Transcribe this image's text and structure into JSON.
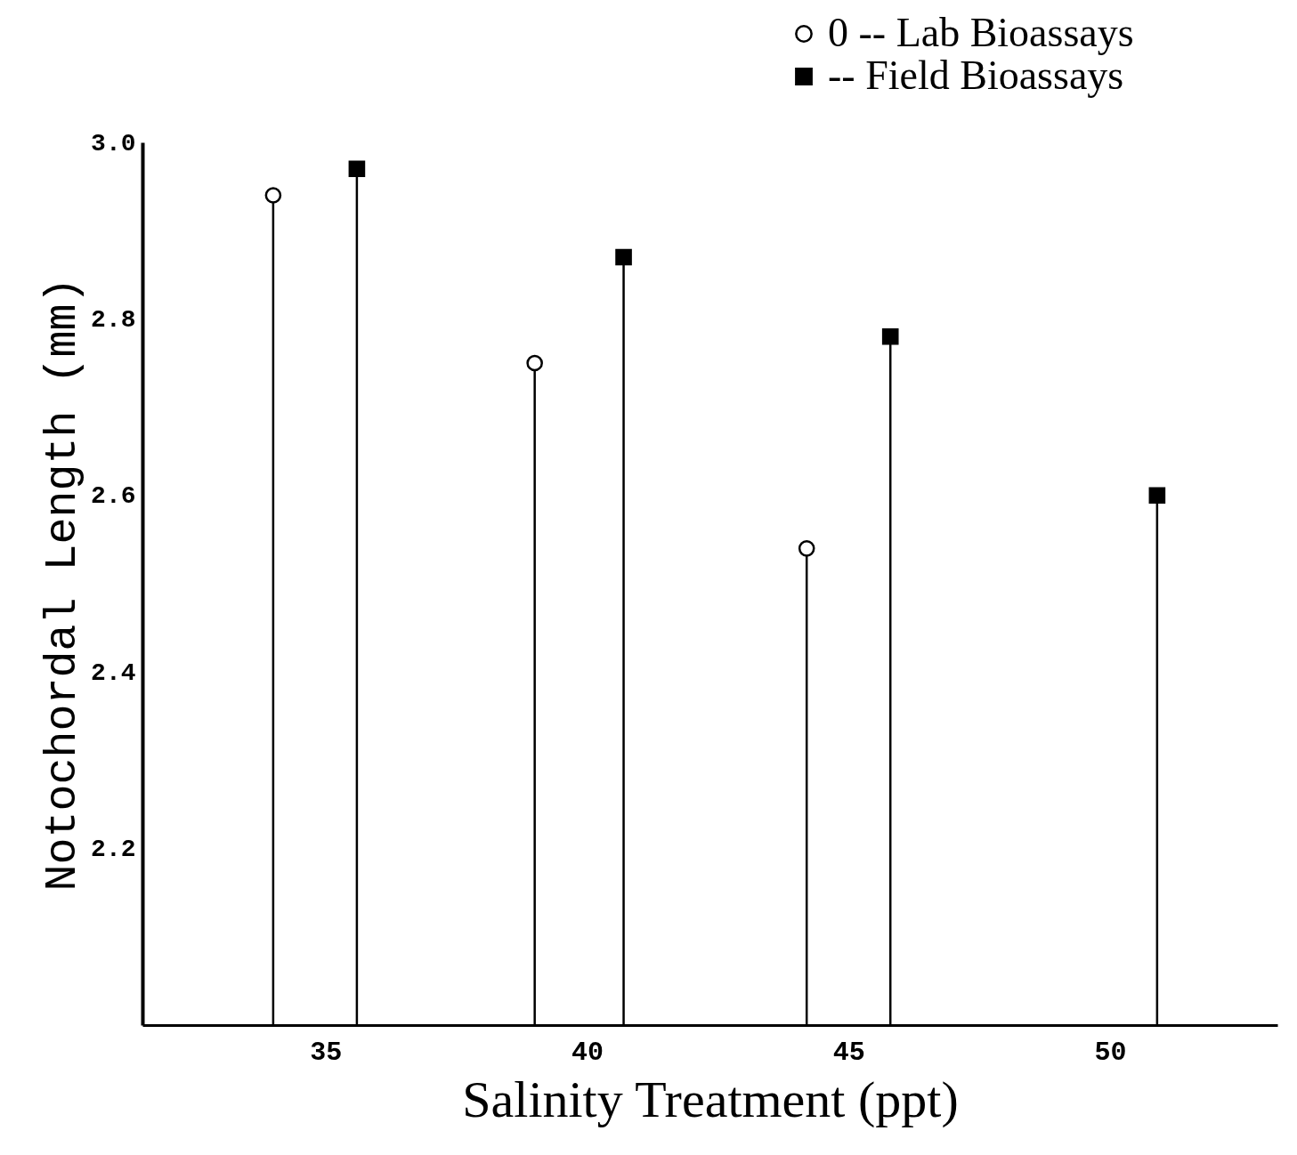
{
  "chart_data": {
    "type": "lollipop",
    "xlabel": "Salinity Treatment (ppt)",
    "ylabel": "Notochordal Length (mm)",
    "xlim": [
      31.5,
      53.2
    ],
    "ylim": [
      2.0,
      3.0
    ],
    "xticks": [
      35,
      40,
      45,
      50
    ],
    "yticks": [
      {
        "value": 2.2,
        "label": "2.2"
      },
      {
        "value": 2.4,
        "label": "2.4"
      },
      {
        "value": 2.6,
        "label": "2.6"
      },
      {
        "value": 2.8,
        "label": "2.8"
      },
      {
        "value": 3,
        "label": "3.0"
      }
    ],
    "grid": false,
    "legend": "top right",
    "series": [
      {
        "name": "0 -- Lab Bioassays",
        "color": "#000000",
        "marker": "circle",
        "x": [
          34,
          39,
          44.2
        ],
        "values": [
          2.94,
          2.75,
          2.54
        ]
      },
      {
        "name": "-- Field Bioassays",
        "color": "#000000",
        "marker": "square",
        "x": [
          35.6,
          40.7,
          45.8,
          50.9
        ],
        "values": [
          2.97,
          2.87,
          2.78,
          2.6
        ]
      }
    ]
  }
}
